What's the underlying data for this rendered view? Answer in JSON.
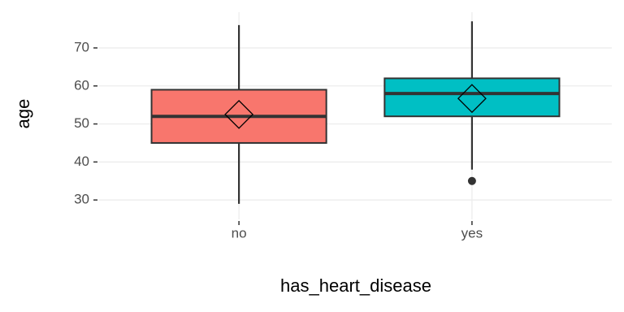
{
  "chart_data": {
    "type": "box",
    "x_label": "has_heart_disease",
    "y_label": "age",
    "categories": [
      "no",
      "yes"
    ],
    "colors": [
      "#F8766D",
      "#00BFC4"
    ],
    "boxes": [
      {
        "min": 29,
        "q1": 45,
        "median": 52,
        "q3": 59,
        "max": 76,
        "mean": 52.5,
        "outliers": []
      },
      {
        "min": 38,
        "q1": 52,
        "median": 58,
        "q3": 62,
        "max": 77,
        "mean": 56.7,
        "outliers": [
          35
        ]
      }
    ],
    "ylim": [
      24.9,
      79.4
    ],
    "yticks": [
      30,
      40,
      50,
      60,
      70
    ],
    "grid": true
  }
}
